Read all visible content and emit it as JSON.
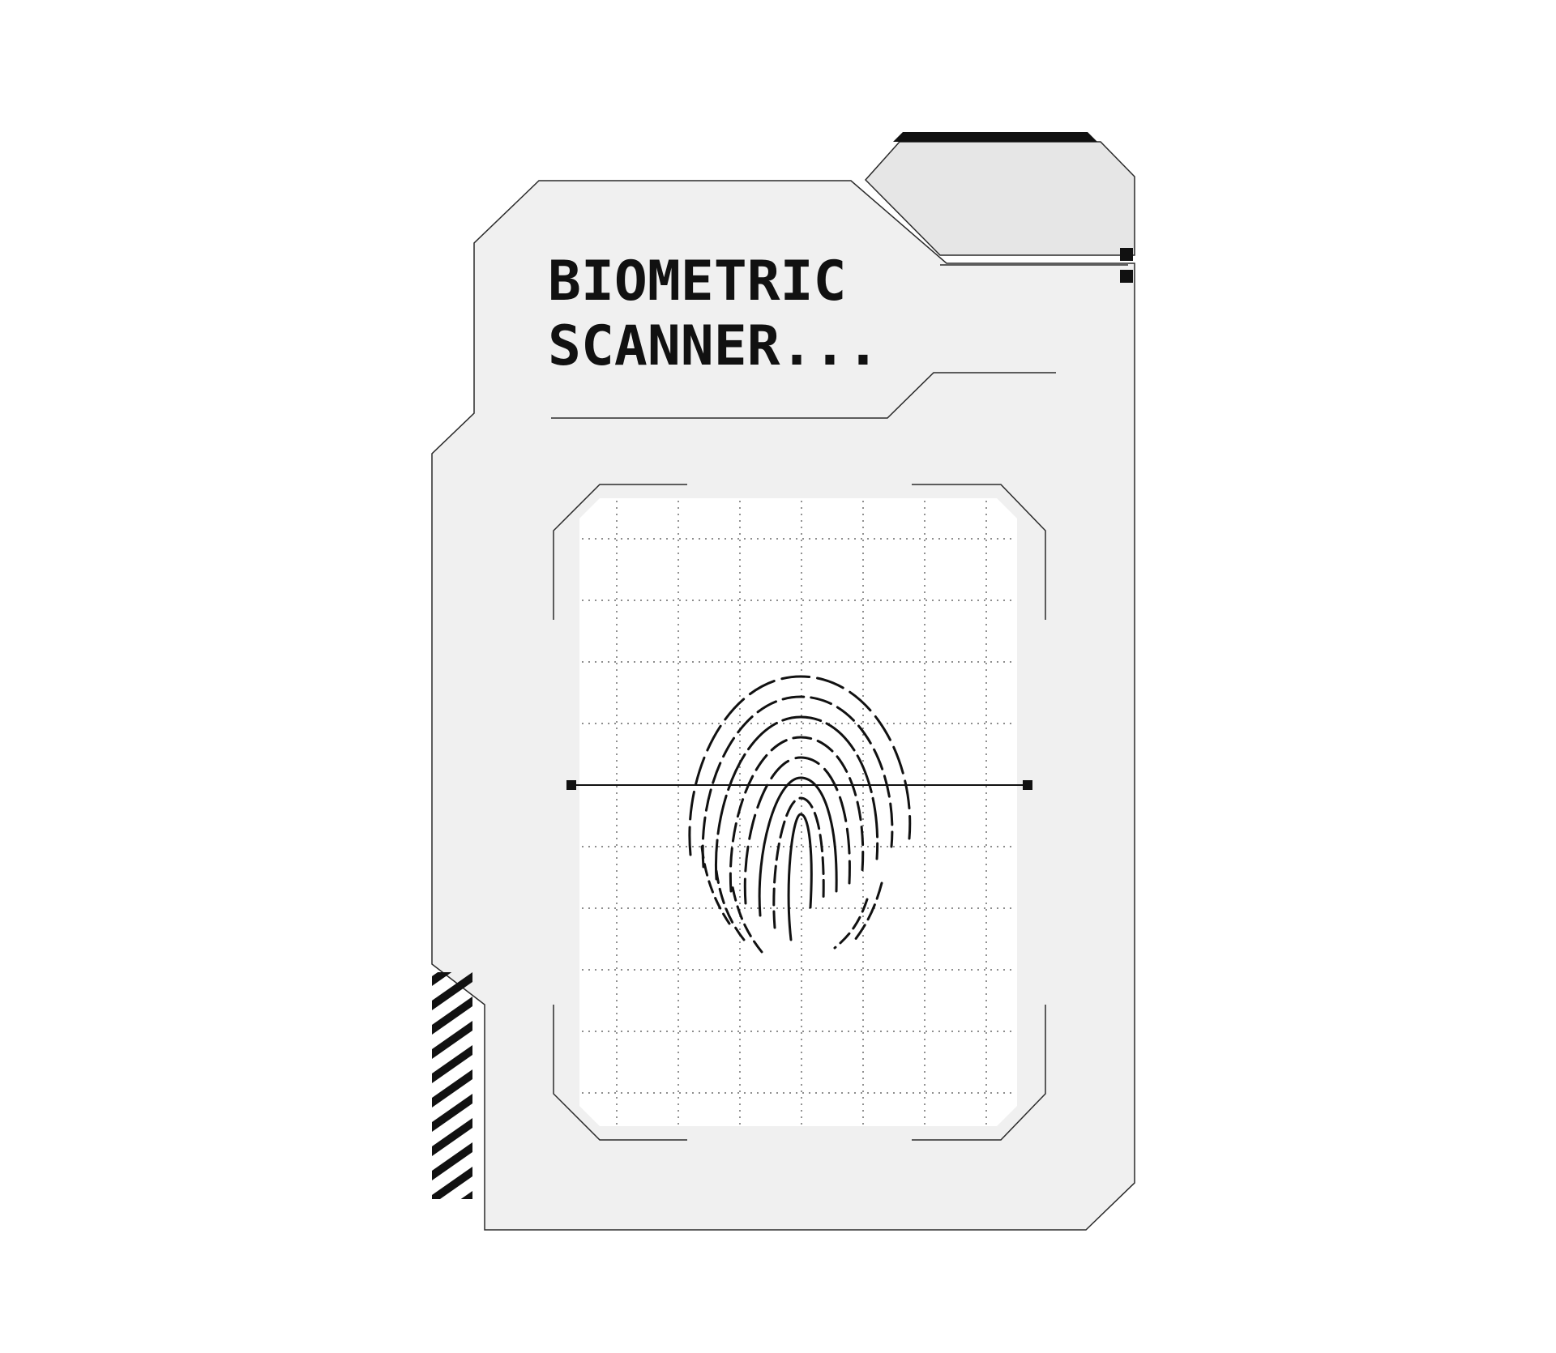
{
  "title": {
    "line1": "BIOMETRIC",
    "line2": "SCANNER..."
  },
  "colors": {
    "background": "#ffffff",
    "panel_fill": "#f0f0f0",
    "tab_fill": "#e6e6e6",
    "scan_area_fill": "#ffffff",
    "stroke": "#111111",
    "grid_dots": "#4a4a4a"
  },
  "scan_line_icon": "scan-line",
  "fingerprint_icon": "fingerprint-icon"
}
